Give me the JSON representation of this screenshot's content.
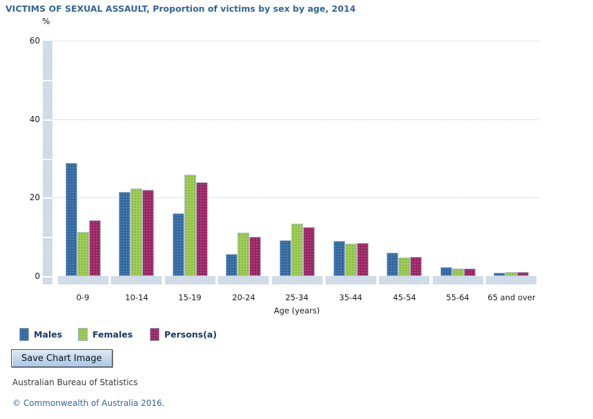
{
  "chart_data": {
    "type": "bar",
    "title": "VICTIMS OF SEXUAL ASSAULT, Proportion of victims by sex by age, 2014",
    "ylabel": "%",
    "xlabel": "Age (years)",
    "ylim": [
      0,
      60
    ],
    "yticks": [
      0,
      20,
      40,
      60
    ],
    "minor_tick_step": 10,
    "grid": true,
    "legend_position": "bottom",
    "categories": [
      "0-9",
      "10-14",
      "15-19",
      "20-24",
      "25-34",
      "35-44",
      "45-54",
      "55-64",
      "65 and over"
    ],
    "series": [
      {
        "name": "Males",
        "color": "#31689F",
        "dot_color": "#5E8AB8",
        "values": [
          28.8,
          21.4,
          16.0,
          5.6,
          9.2,
          8.9,
          5.9,
          2.2,
          0.8
        ]
      },
      {
        "name": "Females",
        "color": "#9FCD55",
        "dot_color": "#7FAE3D",
        "values": [
          11.2,
          22.3,
          25.8,
          11.1,
          13.3,
          8.2,
          4.7,
          1.9,
          1.0
        ]
      },
      {
        "name": "Persons(a)",
        "color": "#9C2363",
        "dot_color": "#B05587",
        "values": [
          14.2,
          22.0,
          23.9,
          10.1,
          12.5,
          8.4,
          4.9,
          2.0,
          1.1
        ]
      }
    ]
  },
  "colors": {
    "title_text": "#336699",
    "axis_band": "#C6D3E1",
    "gridline": "#C8C8C8",
    "legend_text": "#17375E",
    "copyright_text": "#336699"
  },
  "footer": {
    "save_button_label": "Save Chart Image",
    "attribution": "Australian Bureau of Statistics",
    "copyright": "© Commonwealth of Australia 2016."
  }
}
